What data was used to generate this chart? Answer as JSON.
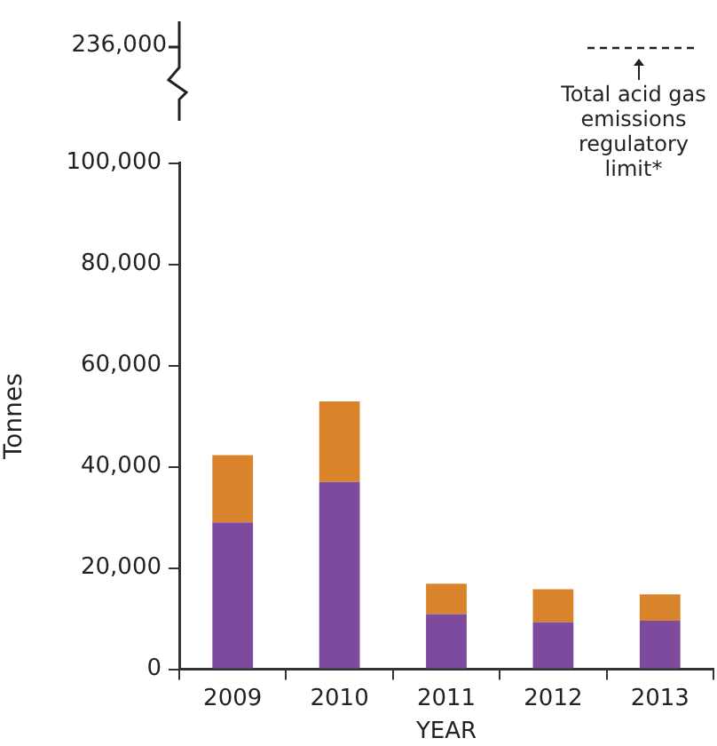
{
  "chart_data": [
    {
      "type": "other",
      "annotations": [
        "236,000",
        "Total acid gas emissions regulatory limit*"
      ]
    },
    {
      "type": "bar",
      "stacked": true,
      "categories": [
        "2009",
        "2010",
        "2011",
        "2012",
        "2013"
      ],
      "xlabel": "YEAR",
      "ylabel": "Tonnes",
      "ylim": [
        0,
        100000
      ],
      "yticks": [
        {
          "value": 0,
          "label": "0"
        },
        {
          "value": 20000,
          "label": "20,000"
        },
        {
          "value": 40000,
          "label": "40,000"
        },
        {
          "value": 60000,
          "label": "60,000"
        },
        {
          "value": 80000,
          "label": "80,000"
        },
        {
          "value": 100000,
          "label": "100,000"
        }
      ],
      "grid": false,
      "legend": false,
      "series": [
        {
          "color": "#7e4a9e",
          "values": [
            29000,
            37000,
            10900,
            9300,
            9600
          ]
        },
        {
          "color": "#d9842a",
          "values": [
            13300,
            15900,
            6000,
            6500,
            5200
          ]
        }
      ]
    }
  ]
}
